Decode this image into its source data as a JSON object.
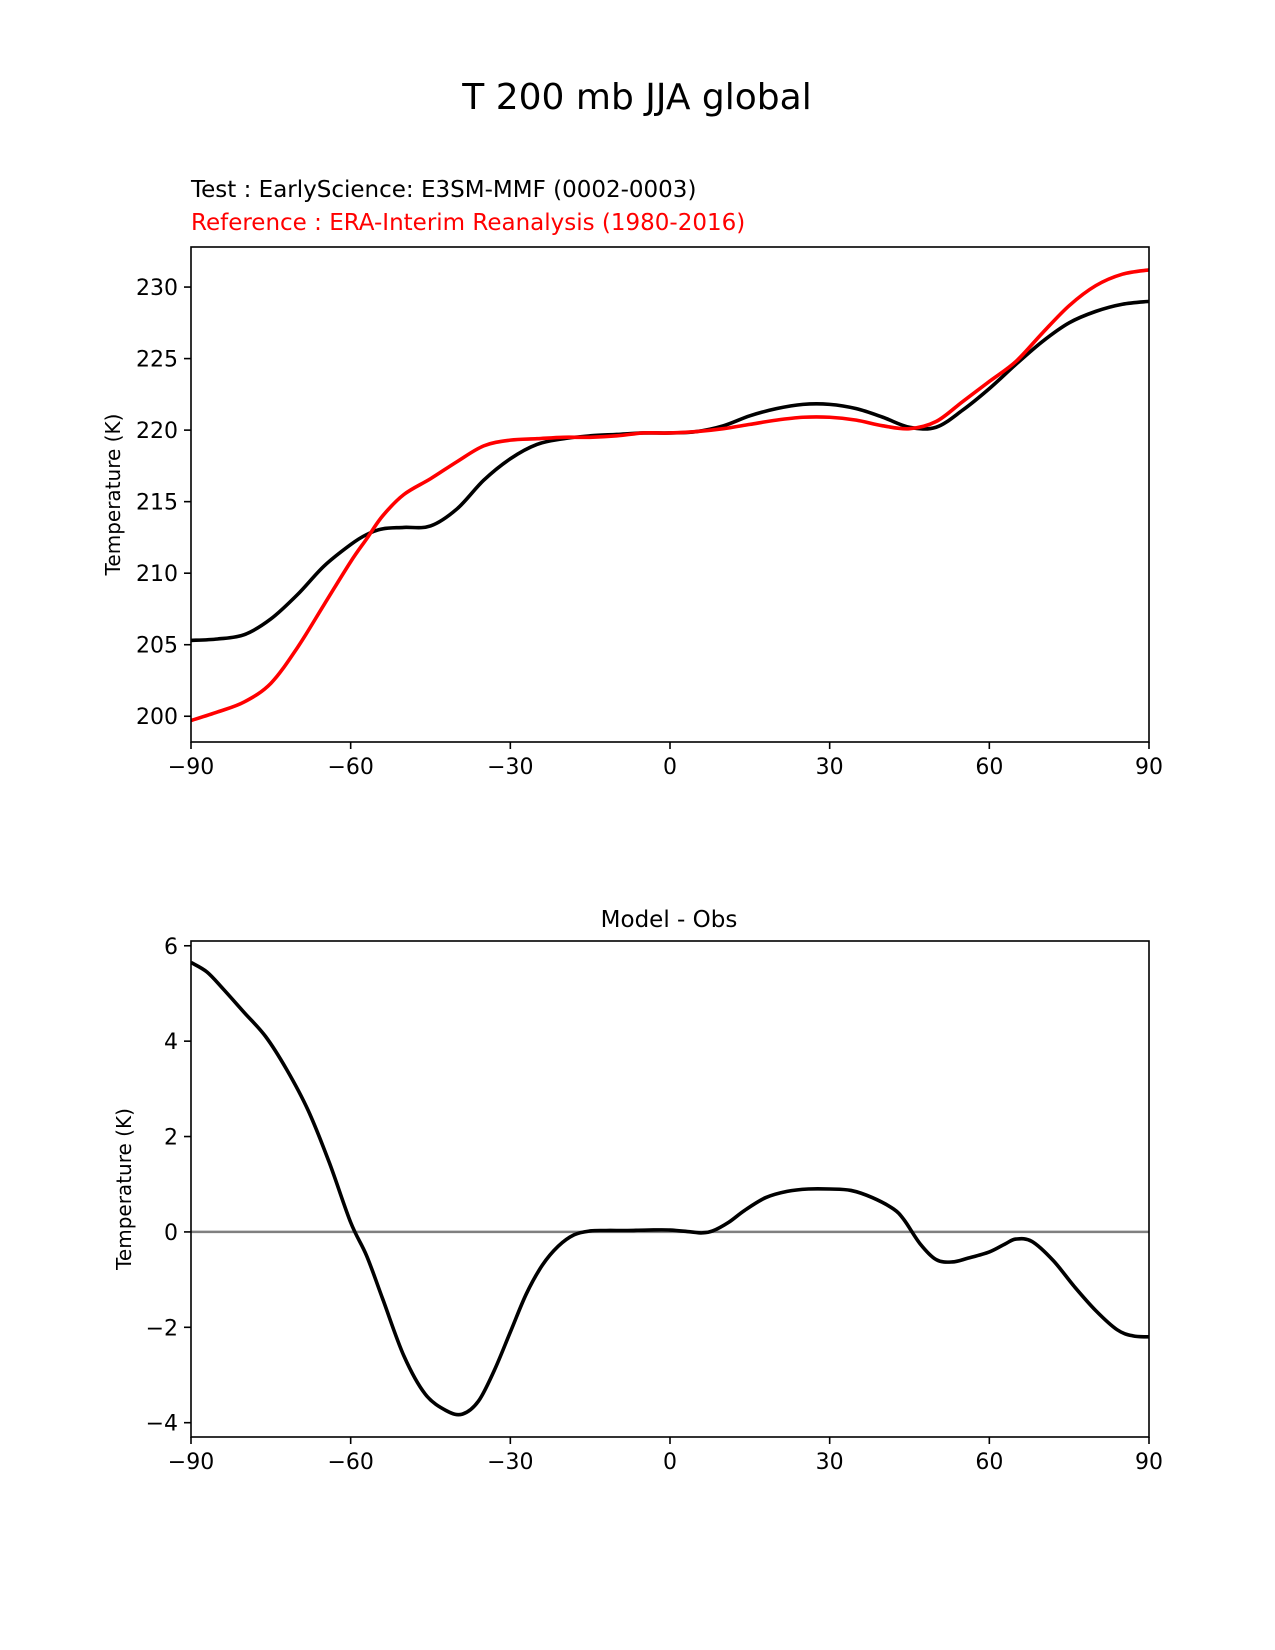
{
  "figure": {
    "suptitle": "T 200 mb JJA global"
  },
  "chart_data": [
    {
      "type": "line",
      "name": "top-panel",
      "test_label": "Test : EarlyScience: E3SM-MMF (0002-0003)",
      "reference_label": "Reference : ERA-Interim Reanalysis (1980-2016)",
      "xlabel": "",
      "ylabel": "Temperature (K)",
      "xlim": [
        -90,
        90
      ],
      "ylim": [
        198.2,
        232.8
      ],
      "xticks": [
        -90,
        -60,
        -30,
        0,
        30,
        60,
        90
      ],
      "xtick_labels": [
        "−90",
        "−60",
        "−30",
        "0",
        "30",
        "60",
        "90"
      ],
      "yticks": [
        200,
        205,
        210,
        215,
        220,
        225,
        230
      ],
      "ytick_labels": [
        "200",
        "205",
        "210",
        "215",
        "220",
        "225",
        "230"
      ],
      "series": [
        {
          "name": "Test",
          "color": "#000000",
          "x": [
            -90,
            -85,
            -80,
            -75,
            -70,
            -65,
            -60,
            -57,
            -54,
            -50,
            -45,
            -40,
            -35,
            -30,
            -25,
            -20,
            -15,
            -10,
            -5,
            0,
            5,
            10,
            15,
            20,
            25,
            30,
            35,
            40,
            45,
            50,
            55,
            60,
            65,
            70,
            75,
            80,
            85,
            90
          ],
          "y": [
            205.3,
            205.4,
            205.7,
            206.8,
            208.5,
            210.5,
            212.0,
            212.7,
            213.1,
            213.2,
            213.3,
            214.5,
            216.5,
            218.0,
            219.0,
            219.4,
            219.6,
            219.7,
            219.8,
            219.8,
            219.9,
            220.3,
            221.0,
            221.5,
            221.8,
            221.8,
            221.5,
            220.9,
            220.2,
            220.2,
            221.4,
            222.9,
            224.6,
            226.2,
            227.5,
            228.3,
            228.8,
            229.0
          ]
        },
        {
          "name": "Reference",
          "color": "#ff0000",
          "x": [
            -90,
            -85,
            -80,
            -75,
            -70,
            -65,
            -60,
            -57,
            -54,
            -50,
            -45,
            -40,
            -35,
            -30,
            -25,
            -20,
            -15,
            -10,
            -5,
            0,
            5,
            10,
            15,
            20,
            25,
            30,
            35,
            40,
            45,
            50,
            55,
            60,
            65,
            70,
            75,
            80,
            85,
            90
          ],
          "y": [
            199.7,
            200.3,
            201.0,
            202.3,
            204.8,
            207.8,
            210.8,
            212.4,
            214.0,
            215.5,
            216.6,
            217.8,
            218.9,
            219.3,
            219.4,
            219.5,
            219.5,
            219.6,
            219.8,
            219.8,
            219.9,
            220.1,
            220.4,
            220.7,
            220.9,
            220.9,
            220.7,
            220.3,
            220.1,
            220.6,
            222.0,
            223.4,
            224.8,
            226.8,
            228.7,
            230.1,
            230.9,
            231.2
          ]
        }
      ]
    },
    {
      "type": "line",
      "name": "bottom-panel",
      "title": "Model - Obs",
      "xlabel": "",
      "ylabel": "Temperature (K)",
      "xlim": [
        -90,
        90
      ],
      "ylim": [
        -4.3,
        6.1
      ],
      "xticks": [
        -90,
        -60,
        -30,
        0,
        30,
        60,
        90
      ],
      "xtick_labels": [
        "−90",
        "−60",
        "−30",
        "0",
        "30",
        "60",
        "90"
      ],
      "yticks": [
        -4,
        -2,
        0,
        2,
        4,
        6
      ],
      "ytick_labels": [
        "−4",
        "−2",
        "0",
        "2",
        "4",
        "6"
      ],
      "zero_line_color": "#808080",
      "series": [
        {
          "name": "Model - Obs",
          "color": "#000000",
          "x": [
            -90,
            -87,
            -84,
            -80,
            -76,
            -72,
            -68,
            -64,
            -60,
            -57,
            -54,
            -50,
            -46,
            -42,
            -39,
            -36,
            -33,
            -30,
            -27,
            -24,
            -21,
            -18,
            -15,
            -12,
            -8,
            -4,
            0,
            4,
            6,
            8,
            11,
            14,
            18,
            22,
            26,
            30,
            34,
            38,
            42,
            44,
            47,
            50,
            53,
            56,
            60,
            63,
            65,
            68,
            72,
            76,
            80,
            84,
            87,
            90
          ],
          "y": [
            5.65,
            5.45,
            5.1,
            4.6,
            4.1,
            3.4,
            2.55,
            1.45,
            0.2,
            -0.5,
            -1.4,
            -2.6,
            -3.4,
            -3.75,
            -3.82,
            -3.55,
            -2.9,
            -2.1,
            -1.3,
            -0.7,
            -0.3,
            -0.06,
            0.02,
            0.03,
            0.03,
            0.04,
            0.04,
            0.0,
            -0.02,
            0.02,
            0.2,
            0.45,
            0.72,
            0.85,
            0.9,
            0.9,
            0.87,
            0.72,
            0.48,
            0.25,
            -0.25,
            -0.58,
            -0.63,
            -0.55,
            -0.42,
            -0.25,
            -0.15,
            -0.2,
            -0.6,
            -1.15,
            -1.65,
            -2.05,
            -2.18,
            -2.2
          ]
        }
      ]
    }
  ]
}
